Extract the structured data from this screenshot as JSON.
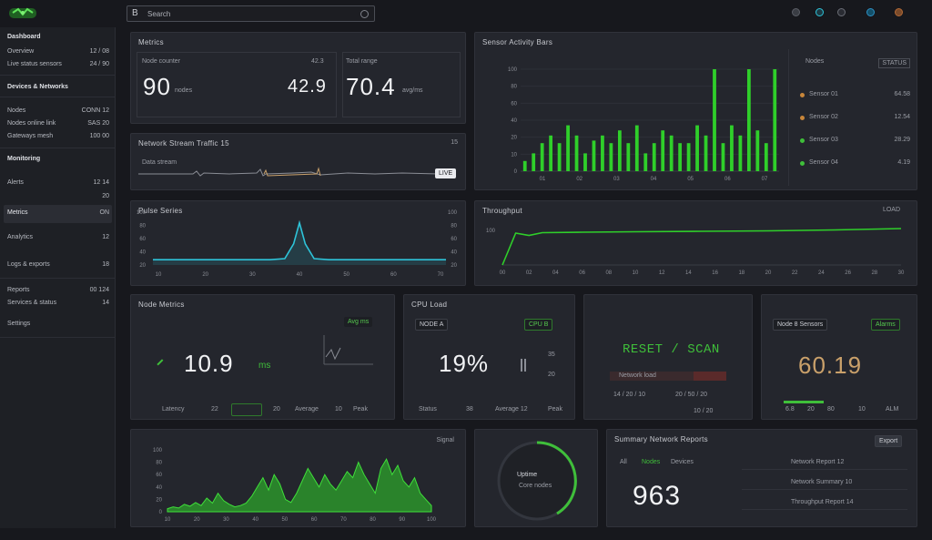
{
  "topbar": {
    "search_icon_glyph": "B",
    "search_value": "Search",
    "icons": [
      "bell-icon",
      "globe-icon",
      "info-icon",
      "settings-icon",
      "user-icon"
    ]
  },
  "sidebar": {
    "sections": [
      {
        "head": "Dashboard",
        "items": [
          {
            "label": "Overview",
            "value": "12 / 08"
          },
          {
            "label": "Live status sensors",
            "value": "24 / 90"
          }
        ]
      },
      {
        "head": "Devices & Networks",
        "items": [
          {
            "label": "Nodes",
            "value": "CONN 12"
          },
          {
            "label": "Nodes online link",
            "value": "SAS 20"
          },
          {
            "label": "Gateways mesh",
            "value": "100 00"
          }
        ]
      },
      {
        "head": "Monitoring",
        "items": [
          {
            "label": "Alerts",
            "value": "12 14"
          },
          {
            "label": "",
            "value": "20"
          },
          {
            "label": "Metrics",
            "value": "ON"
          },
          {
            "label": "Analytics",
            "value": "12"
          },
          {
            "label": "Logs & exports",
            "value": "18"
          },
          {
            "label": "Reports",
            "value": "00 124"
          },
          {
            "label": "Services & status",
            "value": "14"
          },
          {
            "label": "Settings",
            "value": ""
          }
        ]
      }
    ]
  },
  "kpi_panel": {
    "title": "Metrics",
    "left_label": "Node counter",
    "left_value": "90",
    "left_unit": "nodes",
    "mid_value": "42.9",
    "mid_label": "42.3",
    "right_label": "Total range",
    "right_value": "70.4",
    "right_unit": "avg/ms"
  },
  "stream_panel": {
    "title": "Network Stream Traffic 15",
    "sub": "Data stream",
    "badge": "LIVE",
    "right": "15"
  },
  "pulse_panel": {
    "title": "Pulse Series",
    "y_ticks": [
      "100",
      "80",
      "60",
      "40",
      "20"
    ],
    "x_ticks": [
      "10",
      "20",
      "30",
      "40",
      "50",
      "60",
      "70"
    ]
  },
  "bars_panel": {
    "title": "Sensor Activity Bars",
    "legend_header": [
      "Nodes",
      "STATUS"
    ],
    "legend": [
      {
        "label": "Sensor 01",
        "value": "64.58",
        "color": "#c8863a"
      },
      {
        "label": "Sensor 02",
        "value": "12.54",
        "color": "#c8863a"
      },
      {
        "label": "Sensor 03",
        "value": "28.29",
        "color": "#3fbf3a"
      },
      {
        "label": "Sensor 04",
        "value": "4.19",
        "color": "#3fbf3a"
      }
    ],
    "y_ticks": [
      "100",
      "80",
      "60",
      "40",
      "20",
      "10",
      "0"
    ],
    "x_ticks": [
      "01",
      "02",
      "03",
      "04",
      "05",
      "06",
      "07"
    ]
  },
  "line_panel": {
    "title": "Throughput",
    "right_label": "LOAD",
    "y_tick": "100",
    "x_ticks": [
      "00",
      "02",
      "04",
      "06",
      "08",
      "10",
      "12",
      "14",
      "16",
      "18",
      "20",
      "22",
      "24",
      "26",
      "28",
      "30"
    ]
  },
  "card1": {
    "title": "Node Metrics",
    "badge": "Avg ms",
    "value": "10.9",
    "unit": "ms",
    "footer": [
      "Latency",
      "22",
      "",
      "20",
      "Average",
      "10",
      "Peak"
    ]
  },
  "card2": {
    "title": "CPU Load",
    "badge": "NODE A",
    "value_btn": "CPU B",
    "value": "19%",
    "side": [
      "35",
      "20"
    ],
    "footer": [
      "Status",
      "38",
      "Average 12",
      "Peak"
    ]
  },
  "card3": {
    "value": "RESET / SCAN",
    "bar_label": "Network load",
    "footer": [
      "14 / 20 / 10",
      "20 / 50 / 20",
      "10 / 20"
    ]
  },
  "card4": {
    "badge_left": "Node 8 Sensors",
    "badge_right": "Alarms",
    "value": "60.19",
    "footer": [
      "6.8",
      "20",
      "80",
      "10",
      "ALM"
    ]
  },
  "area_panel": {
    "title": "Signal",
    "y_ticks": [
      "100",
      "80",
      "60",
      "40",
      "20",
      "0"
    ],
    "x_ticks": [
      "10",
      "20",
      "30",
      "40",
      "50",
      "60",
      "70",
      "80",
      "90",
      "100"
    ]
  },
  "ring_panel": {
    "label": "Uptime",
    "sub": "Core nodes"
  },
  "summary_panel": {
    "title": "Summary Network Reports",
    "badge": "Export",
    "tabs": [
      "All",
      "Nodes",
      "Devices"
    ],
    "value": "963",
    "rows": [
      "Network Report 12",
      "Network Summary 10",
      "Throughput Report 14"
    ]
  },
  "colors": {
    "accent": "#3fbf3a",
    "cyan": "#2ec4d9",
    "orange": "#c9a06a",
    "panel": "#24262d",
    "bg": "#17181d"
  },
  "chart_data": [
    {
      "type": "bar",
      "title": "Sensor Activity Bars",
      "values": [
        4,
        7,
        11,
        14,
        11,
        18,
        14,
        7,
        12,
        14,
        11,
        16,
        11,
        18,
        7,
        11,
        16,
        14,
        11,
        11,
        18,
        14,
        40,
        11,
        18,
        14,
        40,
        16,
        11,
        40
      ]
    },
    {
      "type": "line",
      "title": "Pulse Series",
      "x": [
        0,
        10,
        20,
        30,
        40,
        45,
        48,
        50,
        52,
        55,
        60,
        70,
        80,
        90,
        100
      ],
      "values": [
        10,
        10,
        10,
        10,
        10,
        12,
        40,
        80,
        40,
        12,
        10,
        10,
        10,
        10,
        10
      ]
    },
    {
      "type": "line",
      "title": "Throughput",
      "x": [
        0,
        1,
        2,
        3,
        6,
        10,
        15,
        20,
        25,
        30
      ],
      "values": [
        0,
        70,
        65,
        71,
        72,
        73,
        74,
        75,
        77,
        80
      ]
    },
    {
      "type": "area",
      "title": "Signal",
      "values": [
        5,
        8,
        6,
        12,
        9,
        15,
        10,
        22,
        14,
        30,
        18,
        12,
        8,
        10,
        14,
        25,
        40,
        55,
        35,
        60,
        45,
        20,
        15,
        30,
        50,
        70,
        55,
        40,
        60,
        45,
        35,
        50,
        65,
        55,
        80,
        60,
        45,
        30,
        70,
        85,
        60,
        75,
        50,
        40,
        55,
        30,
        20,
        10
      ]
    }
  ]
}
